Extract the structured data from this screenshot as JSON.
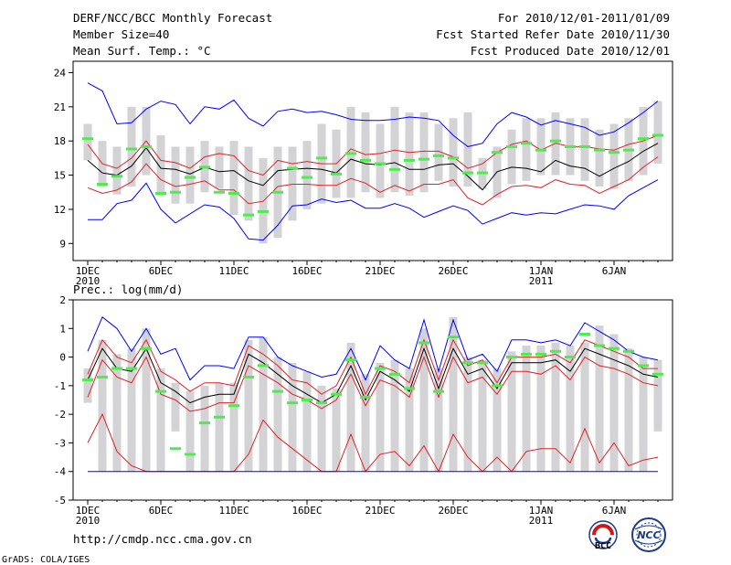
{
  "header": {
    "title": "DERF/NCC/BCC Monthly Forecast",
    "member": "Member Size=40",
    "variable": "Mean Surf. Temp.: °C",
    "period": "For 2010/12/01-2011/01/09",
    "started": "Fcst Started Refer Date 2010/11/30",
    "produced": "Fcst Produced Date 2010/12/01"
  },
  "footer": {
    "url": "http://cmdp.ncc.cma.gov.cn",
    "grads": "GrADS: COLA/IGES",
    "logo_bcc": "BCC",
    "logo_ncc": "NCC"
  },
  "colors": {
    "box": "#d3d3d6",
    "green": "#4ced4c",
    "blue": "#0000ff",
    "red": "#e0202a",
    "mean": "#000000"
  },
  "chart_data": [
    {
      "type": "box-ensemble",
      "title": "Mean Surf. Temp.: °C",
      "days": 40,
      "ylim": [
        7.5,
        25
      ],
      "yticks": [
        9,
        12,
        15,
        18,
        21,
        24
      ],
      "xticks": [
        {
          "day": 1,
          "label": "1DEC",
          "sub": "2010"
        },
        {
          "day": 6,
          "label": "6DEC",
          "sub": ""
        },
        {
          "day": 11,
          "label": "11DEC",
          "sub": ""
        },
        {
          "day": 16,
          "label": "16DEC",
          "sub": ""
        },
        {
          "day": 21,
          "label": "21DEC",
          "sub": ""
        },
        {
          "day": 26,
          "label": "26DEC",
          "sub": ""
        },
        {
          "day": 32,
          "label": "1JAN",
          "sub": "2011"
        },
        {
          "day": 37,
          "label": "6JAN",
          "sub": ""
        }
      ],
      "box_low": [
        16.3,
        14.0,
        13.3,
        14.0,
        15.0,
        13.5,
        12.5,
        12.5,
        13.5,
        13.8,
        11.5,
        11.0,
        9.0,
        9.5,
        11.0,
        12.0,
        12.5,
        13.0,
        13.0,
        13.5,
        13.0,
        13.5,
        13.2,
        13.5,
        14.5,
        14.0,
        14.0,
        13.8,
        13.0,
        14.2,
        14.5,
        15.0,
        15.0,
        15.0,
        14.5,
        14.0,
        13.8,
        14.5,
        15.0,
        16.0
      ],
      "box_high": [
        19.5,
        18.0,
        17.5,
        21.0,
        21.0,
        18.5,
        17.5,
        17.5,
        18.0,
        17.5,
        18.0,
        17.5,
        16.5,
        17.5,
        17.5,
        18.0,
        19.5,
        19.0,
        21.0,
        20.5,
        19.5,
        21.0,
        20.5,
        20.5,
        19.5,
        20.0,
        20.5,
        16.5,
        17.5,
        19.0,
        20.0,
        20.0,
        20.5,
        20.0,
        20.0,
        19.0,
        19.5,
        20.0,
        21.0,
        21.5
      ],
      "control": [
        18.2,
        14.2,
        14.9,
        17.3,
        17.5,
        13.4,
        13.5,
        14.8,
        15.7,
        13.5,
        13.4,
        11.5,
        11.8,
        13.5,
        15.6,
        14.8,
        16.5,
        15.1,
        16.9,
        16.3,
        16.0,
        15.5,
        16.3,
        16.4,
        16.7,
        16.5,
        15.2,
        15.2,
        17.0,
        17.5,
        17.8,
        17.2,
        18.0,
        17.5,
        17.5,
        17.2,
        17.0,
        17.2,
        18.2,
        18.5
      ],
      "max": [
        23.1,
        22.4,
        19.5,
        19.6,
        20.8,
        21.5,
        21.2,
        19.5,
        21.0,
        20.8,
        21.6,
        20.0,
        19.3,
        20.6,
        20.8,
        20.5,
        20.6,
        20.3,
        19.9,
        19.8,
        19.8,
        19.9,
        20.1,
        20.0,
        19.8,
        18.5,
        17.5,
        17.8,
        19.5,
        20.5,
        20.1,
        19.4,
        19.8,
        19.5,
        19.2,
        18.5,
        18.8,
        19.6,
        20.5,
        21.5
      ],
      "p75": [
        17.7,
        16.0,
        15.6,
        16.5,
        18.0,
        16.3,
        16.1,
        15.6,
        16.6,
        16.9,
        16.7,
        15.4,
        15.0,
        16.3,
        16.0,
        16.2,
        16.0,
        16.0,
        17.3,
        16.8,
        16.9,
        17.2,
        17.0,
        17.1,
        17.1,
        16.6,
        15.6,
        16.0,
        17.0,
        17.7,
        18.0,
        17.2,
        17.8,
        17.5,
        17.5,
        17.3,
        17.2,
        17.7,
        18.0,
        18.5
      ],
      "mean": [
        16.3,
        15.2,
        15.0,
        15.8,
        17.4,
        15.6,
        15.5,
        15.1,
        15.7,
        15.3,
        15.4,
        14.5,
        14.1,
        15.4,
        15.5,
        15.6,
        15.5,
        15.2,
        16.4,
        16.0,
        15.9,
        16.1,
        15.5,
        15.5,
        15.9,
        16.0,
        14.9,
        13.7,
        15.3,
        15.7,
        15.6,
        15.3,
        16.3,
        15.8,
        15.6,
        14.9,
        15.6,
        16.2,
        17.1,
        17.8
      ],
      "p25": [
        13.9,
        13.4,
        13.7,
        14.4,
        16.0,
        14.6,
        14.0,
        14.2,
        14.5,
        13.7,
        13.7,
        12.5,
        12.7,
        14.0,
        14.2,
        14.2,
        14.1,
        14.1,
        14.7,
        14.3,
        13.5,
        14.1,
        13.6,
        14.2,
        14.2,
        14.6,
        13.0,
        12.4,
        13.3,
        14.0,
        14.1,
        13.9,
        14.6,
        14.2,
        14.1,
        13.4,
        14.0,
        14.6,
        15.7,
        16.6
      ],
      "min": [
        11.1,
        11.1,
        12.5,
        12.8,
        14.3,
        12.0,
        10.8,
        11.6,
        12.4,
        12.2,
        11.2,
        9.4,
        9.3,
        10.6,
        12.3,
        12.4,
        12.9,
        12.6,
        12.8,
        12.1,
        12.1,
        12.5,
        12.1,
        11.3,
        11.8,
        12.3,
        11.9,
        10.7,
        11.2,
        11.7,
        11.5,
        11.7,
        11.6,
        12.0,
        12.4,
        12.3,
        12.0,
        13.2,
        13.9,
        14.6
      ]
    },
    {
      "type": "box-ensemble",
      "title": "Prec.: log(mm/d)",
      "days": 40,
      "ylim": [
        -5,
        2
      ],
      "yticks": [
        -5,
        -4,
        -3,
        -2,
        -1,
        0,
        1,
        2
      ],
      "xticks": [
        {
          "day": 1,
          "label": "1DEC",
          "sub": "2010"
        },
        {
          "day": 6,
          "label": "6DEC",
          "sub": ""
        },
        {
          "day": 11,
          "label": "11DEC",
          "sub": ""
        },
        {
          "day": 16,
          "label": "16DEC",
          "sub": ""
        },
        {
          "day": 21,
          "label": "21DEC",
          "sub": ""
        },
        {
          "day": 26,
          "label": "26DEC",
          "sub": ""
        },
        {
          "day": 32,
          "label": "1JAN",
          "sub": "2011"
        },
        {
          "day": 37,
          "label": "6JAN",
          "sub": ""
        }
      ],
      "box_low": [
        -1.6,
        -4.0,
        -4.0,
        -4.0,
        -4.0,
        -4.0,
        -2.6,
        -4.0,
        -4.0,
        -4.0,
        -4.0,
        -4.0,
        -4.0,
        -4.0,
        -4.0,
        -4.0,
        -4.0,
        -4.0,
        -4.0,
        -4.0,
        -4.0,
        -4.0,
        -4.0,
        -4.0,
        -4.0,
        -4.0,
        -4.0,
        -4.0,
        -4.0,
        -4.0,
        -4.0,
        -4.0,
        -4.0,
        -4.0,
        -4.0,
        -4.0,
        -4.0,
        -4.0,
        -4.0,
        -2.6
      ],
      "box_high": [
        -0.4,
        0.6,
        0.1,
        0.3,
        1.0,
        -0.4,
        -0.9,
        -1.2,
        -1.0,
        -0.9,
        -0.9,
        0.6,
        0.7,
        0.0,
        -0.2,
        -0.5,
        -1.0,
        -1.1,
        0.5,
        -0.6,
        -0.2,
        -0.1,
        -0.4,
        1.0,
        -0.4,
        1.4,
        0.0,
        -0.1,
        -0.4,
        0.2,
        0.4,
        0.4,
        0.5,
        0.4,
        0.5,
        1.1,
        0.8,
        0.3,
        0.0,
        -0.1
      ],
      "control": [
        -0.8,
        -0.7,
        -0.4,
        -0.4,
        0.3,
        -1.2,
        -3.2,
        -3.4,
        -2.3,
        -2.1,
        -1.7,
        -0.7,
        -0.3,
        -1.2,
        -1.6,
        -1.5,
        -1.6,
        -1.3,
        -0.1,
        -1.4,
        -0.4,
        -0.6,
        -1.1,
        0.5,
        -1.2,
        0.7,
        -0.2,
        -0.2,
        -1.0,
        0.0,
        0.1,
        0.1,
        0.2,
        0.0,
        0.8,
        0.4,
        0.3,
        0.2,
        -0.3,
        -0.6
      ],
      "max": [
        0.2,
        1.4,
        1.0,
        0.2,
        1.0,
        0.1,
        0.3,
        -0.8,
        -0.3,
        -0.3,
        -0.4,
        0.7,
        0.7,
        0.0,
        -0.3,
        -0.5,
        -0.7,
        -0.6,
        0.3,
        -0.8,
        0.4,
        -0.1,
        -0.4,
        1.3,
        -0.5,
        1.3,
        -0.1,
        0.1,
        -0.5,
        0.6,
        0.6,
        0.5,
        0.6,
        0.4,
        1.2,
        0.9,
        0.6,
        0.2,
        0.0,
        -0.1
      ],
      "p75": [
        -0.6,
        0.6,
        0.0,
        -0.2,
        0.6,
        -0.5,
        -0.8,
        -1.2,
        -0.9,
        -0.9,
        -1.0,
        0.4,
        0.1,
        -0.3,
        -0.8,
        -0.9,
        -1.3,
        -1.0,
        -0.0,
        -1.3,
        -0.3,
        -0.5,
        -0.9,
        0.6,
        -0.8,
        0.6,
        -0.3,
        -0.1,
        -0.9,
        0.0,
        0.0,
        0.0,
        0.1,
        -0.2,
        0.6,
        0.4,
        0.2,
        0.0,
        -0.4,
        -0.4
      ],
      "mean": [
        -0.8,
        0.3,
        -0.4,
        -0.5,
        0.3,
        -0.9,
        -1.2,
        -1.6,
        -1.4,
        -1.3,
        -1.3,
        0.1,
        -0.2,
        -0.6,
        -1.0,
        -1.3,
        -1.6,
        -1.3,
        -0.3,
        -1.5,
        -0.5,
        -0.8,
        -1.2,
        0.3,
        -1.1,
        0.3,
        -0.6,
        -0.4,
        -1.1,
        -0.2,
        -0.2,
        -0.2,
        -0.1,
        -0.5,
        0.3,
        0.1,
        -0.1,
        -0.3,
        -0.6,
        -0.7
      ],
      "p25": [
        -1.4,
        -0.1,
        -0.7,
        -0.9,
        0.0,
        -1.3,
        -1.5,
        -1.9,
        -1.8,
        -1.6,
        -1.6,
        -0.3,
        -0.6,
        -0.9,
        -1.3,
        -1.5,
        -1.8,
        -1.5,
        -0.6,
        -1.7,
        -0.8,
        -1.0,
        -1.4,
        0.0,
        -1.4,
        0.0,
        -0.9,
        -0.7,
        -1.3,
        -0.5,
        -0.5,
        -0.6,
        -0.3,
        -0.8,
        0.0,
        -0.3,
        -0.4,
        -0.6,
        -0.9,
        -1.0
      ],
      "min": [
        -3.0,
        -2.0,
        -3.3,
        -3.8,
        -4.0,
        -4.0,
        -4.0,
        -4.0,
        -4.0,
        -4.0,
        -4.0,
        -3.4,
        -2.2,
        -2.8,
        -3.2,
        -3.6,
        -4.0,
        -4.0,
        -2.7,
        -4.0,
        -3.4,
        -3.3,
        -3.8,
        -3.1,
        -4.0,
        -2.7,
        -3.5,
        -4.0,
        -3.5,
        -4.0,
        -3.3,
        -3.2,
        -3.2,
        -3.7,
        -2.5,
        -3.7,
        -3.0,
        -3.8,
        -3.6,
        -3.5
      ]
    }
  ]
}
